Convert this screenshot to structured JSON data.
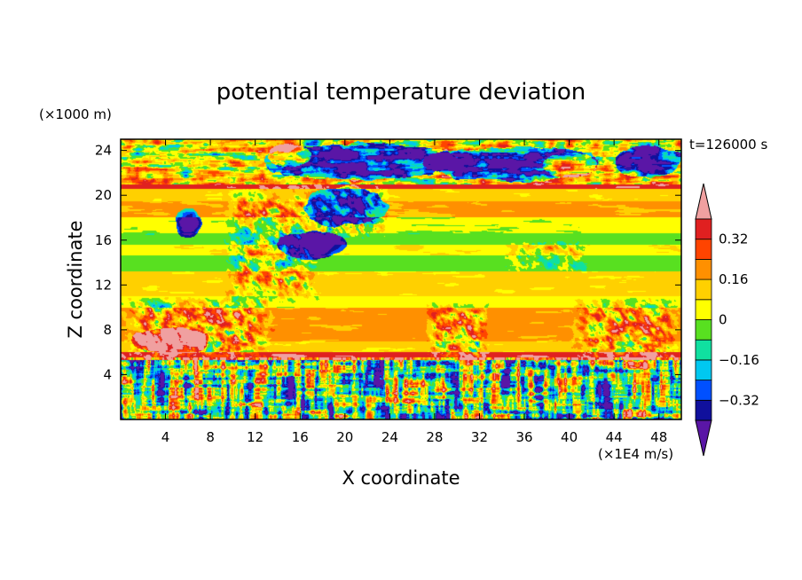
{
  "chart_data": {
    "type": "heatmap",
    "title": "potential temperature deviation",
    "xlabel": "X coordinate",
    "ylabel": "Z coordinate",
    "x_unit": "(×1E4 m/s)",
    "y_unit": "(×1000 m)",
    "time_label": "t=126000 s",
    "xlim": [
      0,
      50
    ],
    "ylim": [
      0,
      25
    ],
    "x_ticks": [
      4,
      8,
      12,
      16,
      20,
      24,
      28,
      32,
      36,
      40,
      44,
      48
    ],
    "y_ticks": [
      4,
      8,
      12,
      16,
      20,
      24
    ],
    "colorbar": {
      "levels": [
        -0.4,
        -0.32,
        -0.24,
        -0.16,
        -0.08,
        0,
        0.08,
        0.16,
        0.24,
        0.32,
        0.4
      ],
      "labels": [
        "-0.32",
        "-0.16",
        "0",
        "0.16",
        "0.32"
      ],
      "label_values": [
        -0.32,
        -0.16,
        0,
        0.16,
        0.32
      ],
      "colors": [
        "#5a16a6",
        "#10109c",
        "#0050ff",
        "#00c8f0",
        "#10e0a0",
        "#58e020",
        "#ffff00",
        "#ffd000",
        "#ff9000",
        "#ff4400",
        "#e02020",
        "#f0a0a0"
      ],
      "extend": "both"
    },
    "field_bands": [
      {
        "z": [
          21.0,
          25.0
        ],
        "value": 0.1,
        "noise": 0.45
      },
      {
        "z": [
          20.6,
          21.0
        ],
        "value": 0.38,
        "noise": 0.05
      },
      {
        "z": [
          19.5,
          20.6
        ],
        "value": 0.1,
        "noise": 0.06
      },
      {
        "z": [
          18.0,
          19.5
        ],
        "value": 0.18,
        "noise": 0.08
      },
      {
        "z": [
          16.6,
          18.0
        ],
        "value": 0.02,
        "noise": 0.08
      },
      {
        "z": [
          15.6,
          16.6
        ],
        "value": -0.05,
        "noise": 0.06
      },
      {
        "z": [
          14.6,
          15.6
        ],
        "value": 0.07,
        "noise": 0.05
      },
      {
        "z": [
          13.2,
          14.6
        ],
        "value": -0.04,
        "noise": 0.06
      },
      {
        "z": [
          11.0,
          13.2
        ],
        "value": 0.1,
        "noise": 0.06
      },
      {
        "z": [
          10.0,
          11.0
        ],
        "value": 0.03,
        "noise": 0.06
      },
      {
        "z": [
          7.0,
          10.0
        ],
        "value": 0.18,
        "noise": 0.06
      },
      {
        "z": [
          6.0,
          7.0
        ],
        "value": 0.1,
        "noise": 0.07
      },
      {
        "z": [
          5.3,
          6.0
        ],
        "value": 0.38,
        "noise": 0.08
      },
      {
        "z": [
          0.0,
          5.3
        ],
        "value": -0.05,
        "noise": 0.55
      }
    ],
    "turbulent_patches": [
      {
        "x": [
          0.0,
          14.0
        ],
        "z": [
          5.0,
          11.0
        ],
        "amp": 0.5
      },
      {
        "x": [
          27.0,
          33.0
        ],
        "z": [
          5.0,
          10.5
        ],
        "amp": 0.45
      },
      {
        "x": [
          40.0,
          50.0
        ],
        "z": [
          5.0,
          11.0
        ],
        "amp": 0.45
      },
      {
        "x": [
          9.0,
          18.0
        ],
        "z": [
          10.0,
          21.0
        ],
        "amp": 0.4
      },
      {
        "x": [
          17.0,
          24.0
        ],
        "z": [
          16.0,
          21.0
        ],
        "amp": 0.45
      },
      {
        "x": [
          34.0,
          42.0
        ],
        "z": [
          13.0,
          16.0
        ],
        "amp": 0.25
      }
    ],
    "cold_blobs": [
      {
        "x": 21.0,
        "z": 23.0,
        "rx": 9.0,
        "rz": 1.6
      },
      {
        "x": 35.0,
        "z": 22.8,
        "rx": 8.0,
        "rz": 1.5
      },
      {
        "x": 47.0,
        "z": 23.0,
        "rx": 3.0,
        "rz": 1.4
      },
      {
        "x": 20.0,
        "z": 19.0,
        "rx": 3.5,
        "rz": 1.8
      },
      {
        "x": 17.0,
        "z": 15.5,
        "rx": 3.0,
        "rz": 1.2
      },
      {
        "x": 6.0,
        "z": 17.5,
        "rx": 1.2,
        "rz": 1.3
      }
    ],
    "warm_blobs": [
      {
        "x": 40.0,
        "z": 22.7,
        "rx": 2.5,
        "rz": 1.1
      },
      {
        "x": 15.0,
        "z": 23.5,
        "rx": 2.0,
        "rz": 1.0
      },
      {
        "x": 4.5,
        "z": 7.0,
        "rx": 3.5,
        "rz": 1.2
      }
    ]
  }
}
